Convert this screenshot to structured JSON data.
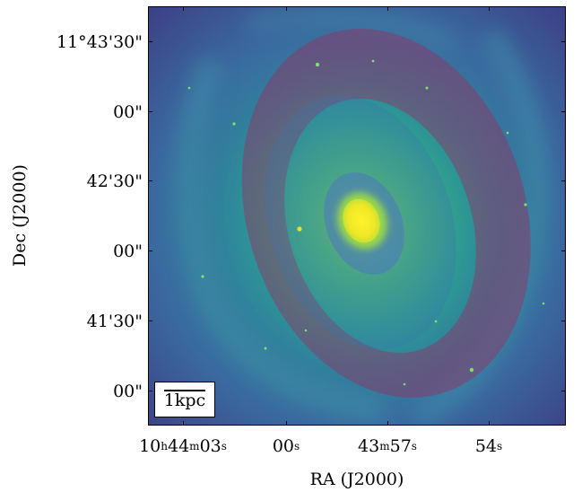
{
  "figure": {
    "xlabel": "RA (J2000)",
    "ylabel": "Dec (J2000)",
    "scalebar_label": "1kpc",
    "y_ticks": [
      "11°43'30\"",
      "00\"",
      "42'30\"",
      "00\"",
      "41'30\"",
      "00\""
    ],
    "x_ticks": [
      {
        "hours": "10",
        "h_unit": "h",
        "minutes": "44",
        "m_unit": "m",
        "seconds": "03",
        "s_unit": "s"
      },
      {
        "hours": "",
        "h_unit": "",
        "minutes": "",
        "m_unit": "",
        "seconds": "00",
        "s_unit": "s"
      },
      {
        "hours": "",
        "h_unit": "",
        "minutes": "43",
        "m_unit": "m",
        "seconds": "57",
        "s_unit": "s"
      },
      {
        "hours": "",
        "h_unit": "",
        "minutes": "",
        "m_unit": "",
        "seconds": "54",
        "s_unit": "s"
      }
    ],
    "colors": {
      "background_dark": "#3b3f86",
      "mid_teal": "#2f9f96",
      "bright_green": "#5fc46a",
      "core_yellow": "#f7ee26",
      "outer_ring_overlay": "#a0285a",
      "inner_ellipse_overlay": "#3e6fb4"
    }
  }
}
